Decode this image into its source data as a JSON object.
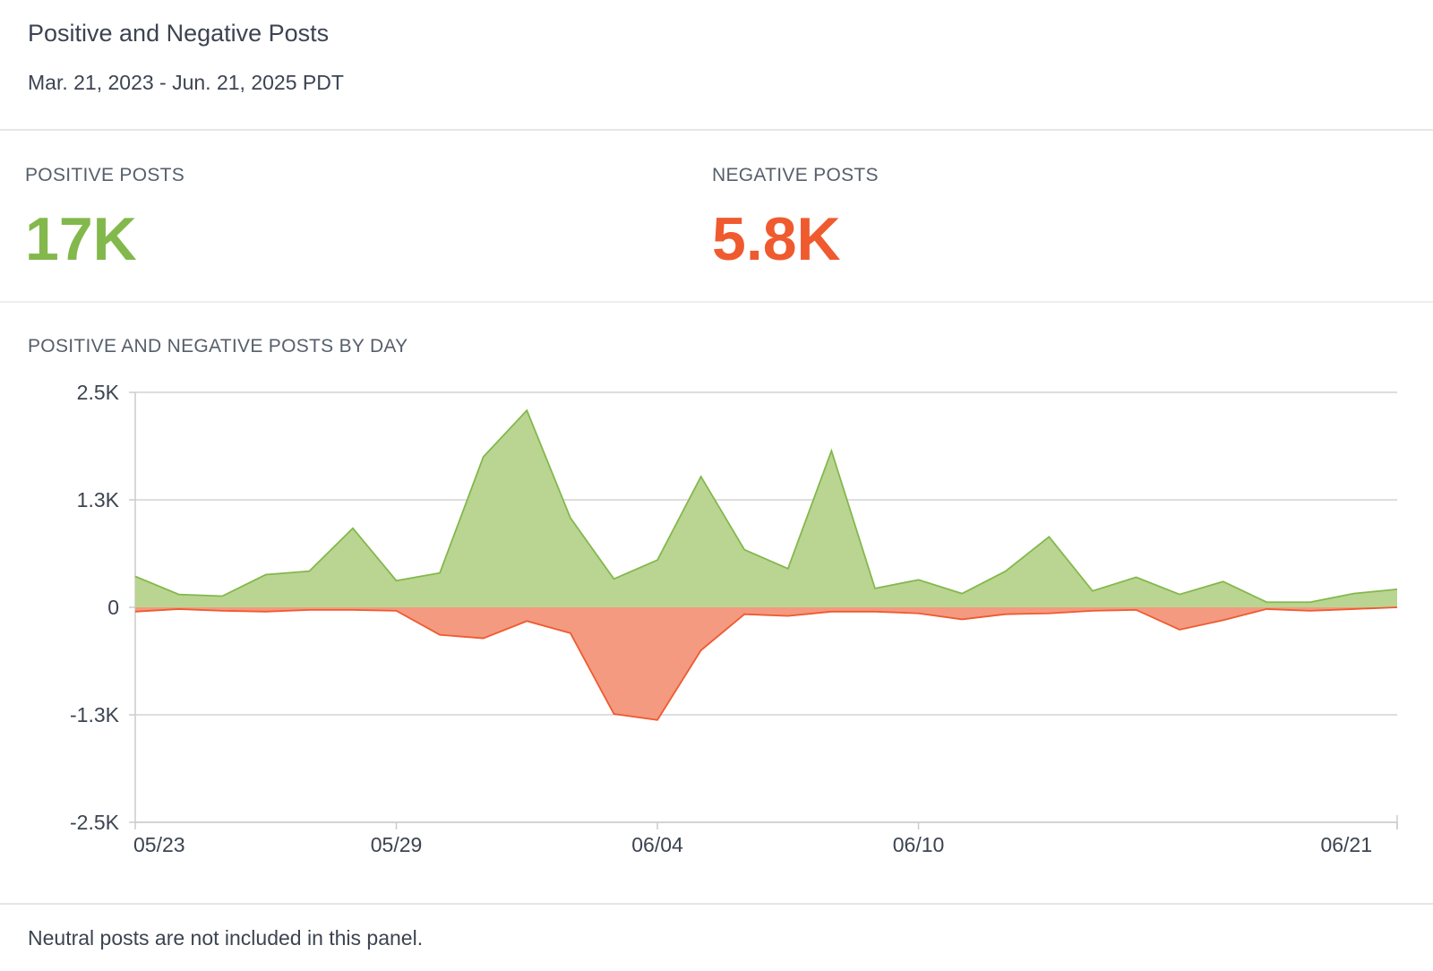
{
  "panel": {
    "title": "Positive and Negative Posts",
    "date_range": "Mar. 21, 2023 - Jun. 21, 2025 PDT"
  },
  "metrics": {
    "positive": {
      "label": "POSITIVE POSTS",
      "value": "17K",
      "color": "#83b84c"
    },
    "negative": {
      "label": "NEGATIVE POSTS",
      "value": "5.8K",
      "color": "#ef5a2f"
    }
  },
  "chart_title": "POSITIVE AND NEGATIVE POSTS BY DAY",
  "footer": {
    "note": "Neutral posts are not included in this panel."
  },
  "chart_data": {
    "type": "area",
    "x": [
      "05/23",
      "05/24",
      "05/25",
      "05/26",
      "05/27",
      "05/28",
      "05/29",
      "05/30",
      "05/31",
      "06/01",
      "06/02",
      "06/03",
      "06/04",
      "06/05",
      "06/06",
      "06/07",
      "06/08",
      "06/09",
      "06/10",
      "06/11",
      "06/12",
      "06/13",
      "06/14",
      "06/15",
      "06/16",
      "06/17",
      "06/18",
      "06/19",
      "06/20",
      "06/21"
    ],
    "series": [
      {
        "color": "#83b84c",
        "fill": "#bad592",
        "values": [
          360,
          150,
          130,
          380,
          420,
          920,
          310,
          400,
          1750,
          2290,
          1040,
          330,
          550,
          1520,
          670,
          450,
          1820,
          220,
          320,
          160,
          420,
          820,
          190,
          350,
          150,
          300,
          60,
          60,
          160,
          210
        ]
      },
      {
        "color": "#ef5a2f",
        "fill": "#f39a80",
        "values": [
          -50,
          -20,
          -40,
          -50,
          -30,
          -30,
          -40,
          -320,
          -360,
          -160,
          -300,
          -1240,
          -1310,
          -500,
          -80,
          -100,
          -50,
          -50,
          -70,
          -140,
          -80,
          -70,
          -40,
          -30,
          -260,
          -150,
          -20,
          -40,
          -20,
          0
        ]
      }
    ],
    "y_ticks": [
      "2.5K",
      "1.3K",
      "0",
      "-1.3K",
      "-2.5K"
    ],
    "y_tick_values": [
      2500,
      1250,
      0,
      -1250,
      -2500
    ],
    "x_tick_labels": [
      "05/23",
      "05/29",
      "06/04",
      "06/10",
      "06/21"
    ],
    "ylim": [
      -2500,
      2500
    ],
    "grid": true,
    "legend": "none"
  }
}
